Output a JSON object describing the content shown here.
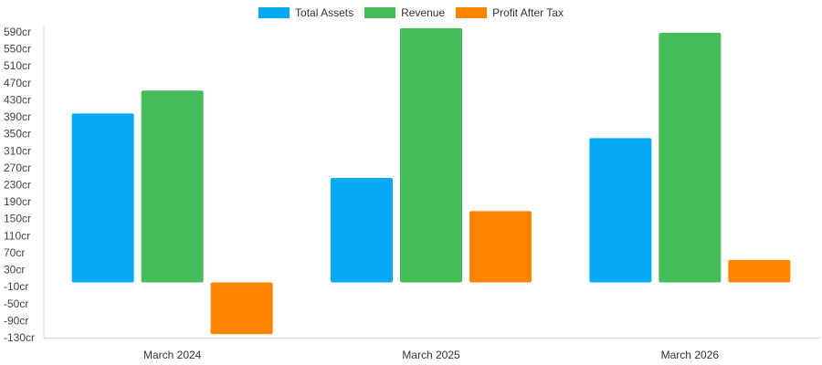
{
  "chart_data": {
    "type": "bar",
    "categories": [
      "March 2024",
      "March 2025",
      "March 2026"
    ],
    "series": [
      {
        "name": "Total Assets",
        "color": "#05a9f4",
        "values": [
          398,
          246,
          340
        ]
      },
      {
        "name": "Revenue",
        "color": "#47bc5b",
        "values": [
          452,
          599,
          588
        ]
      },
      {
        "name": "Profit After Tax",
        "color": "#ff8500",
        "values": [
          -122,
          168,
          53
        ]
      }
    ],
    "yticks": [
      "590cr",
      "550cr",
      "510cr",
      "470cr",
      "430cr",
      "390cr",
      "350cr",
      "310cr",
      "270cr",
      "230cr",
      "190cr",
      "150cr",
      "110cr",
      "70cr",
      "30cr",
      "-10cr",
      "-50cr",
      "-90cr",
      "-130cr"
    ],
    "ylim": [
      -130,
      590
    ],
    "unit_suffix": "cr",
    "grid": false,
    "legend_position": "top-center"
  }
}
